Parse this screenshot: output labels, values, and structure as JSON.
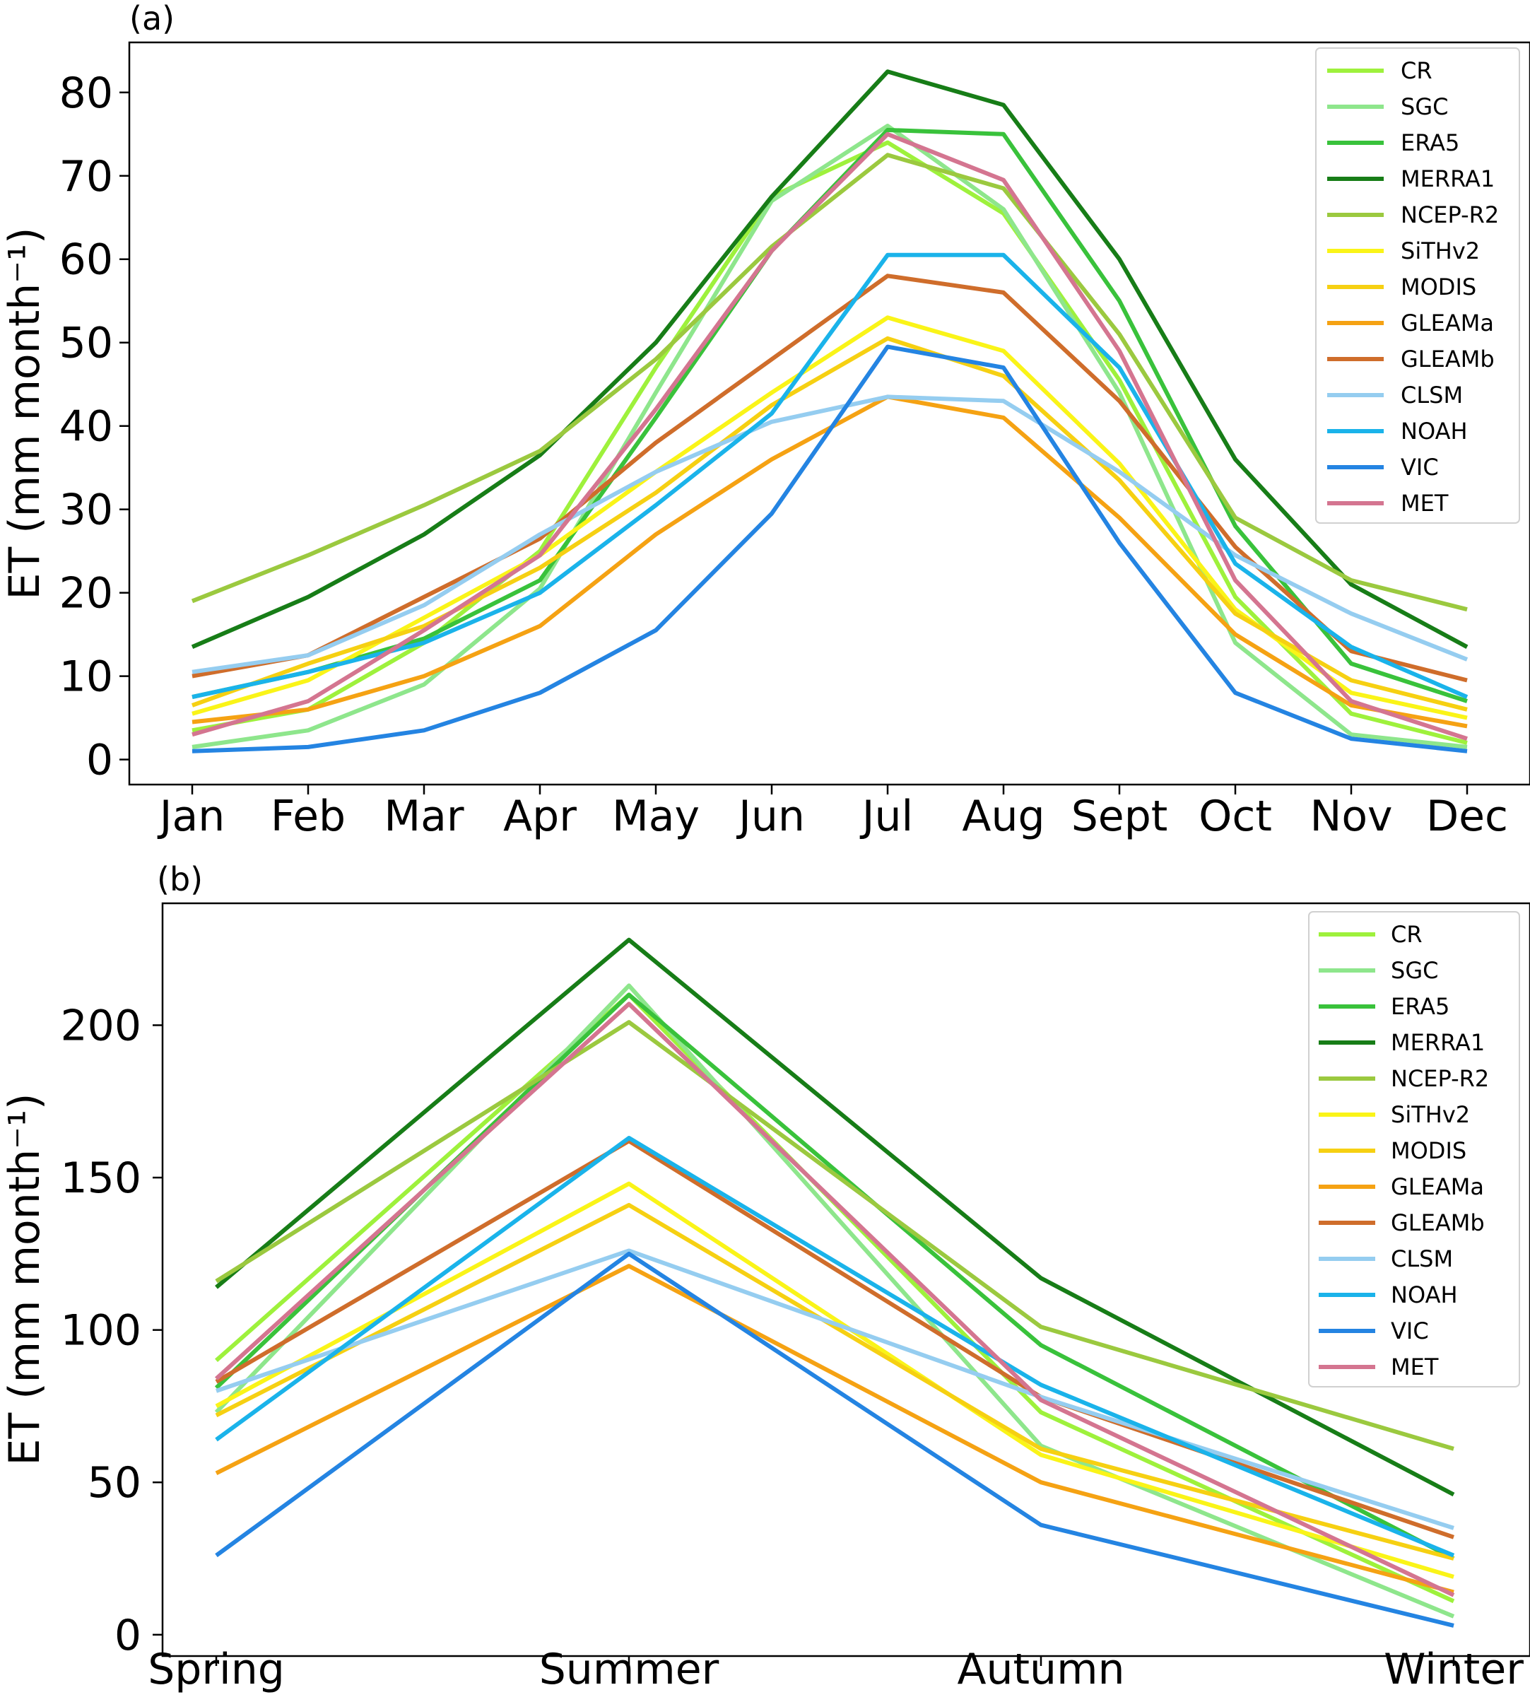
{
  "chart_data": [
    {
      "type": "line",
      "panel_label": "(a)",
      "ylabel": "ET (mm month⁻¹)",
      "categories": [
        "Jan",
        "Feb",
        "Mar",
        "Apr",
        "May",
        "Jun",
        "Jul",
        "Aug",
        "Sept",
        "Oct",
        "Nov",
        "Dec"
      ],
      "ylim": [
        -3,
        86
      ],
      "yticks": [
        0,
        10,
        20,
        30,
        40,
        50,
        60,
        70,
        80
      ],
      "legend_position": "top-right",
      "grid": false,
      "series": [
        {
          "name": "CR",
          "color": "#9ef13c",
          "values": [
            3.5,
            6.0,
            14.0,
            25.0,
            47.0,
            67.5,
            74.0,
            65.5,
            45.5,
            19.5,
            5.5,
            2.0
          ]
        },
        {
          "name": "SGC",
          "color": "#8ee68c",
          "values": [
            1.5,
            3.5,
            9.0,
            20.5,
            44.0,
            67.0,
            76.0,
            66.0,
            44.0,
            14.0,
            3.0,
            1.5
          ]
        },
        {
          "name": "ERA5",
          "color": "#39c23b",
          "values": [
            7.5,
            10.5,
            14.5,
            21.5,
            41.0,
            61.0,
            75.5,
            75.0,
            55.0,
            28.0,
            11.5,
            7.0
          ]
        },
        {
          "name": "MERRA1",
          "color": "#177d17",
          "values": [
            13.5,
            19.5,
            27.0,
            36.5,
            50.0,
            67.5,
            82.5,
            78.5,
            60.0,
            36.0,
            21.0,
            13.5
          ]
        },
        {
          "name": "NCEP-R2",
          "color": "#9bc93f",
          "values": [
            19.0,
            24.5,
            30.5,
            37.0,
            48.0,
            61.5,
            72.5,
            68.5,
            51.0,
            29.0,
            21.5,
            18.0
          ]
        },
        {
          "name": "SiTHv2",
          "color": "#faf418",
          "values": [
            5.5,
            9.5,
            17.0,
            24.5,
            34.5,
            44.0,
            53.0,
            49.0,
            35.5,
            18.0,
            8.0,
            5.0
          ]
        },
        {
          "name": "MODIS",
          "color": "#f6d012",
          "values": [
            6.5,
            11.5,
            16.0,
            23.0,
            32.0,
            42.5,
            50.5,
            46.0,
            33.5,
            17.5,
            9.5,
            6.0
          ]
        },
        {
          "name": "GLEAMa",
          "color": "#f5a213",
          "values": [
            4.5,
            6.0,
            10.0,
            16.0,
            27.0,
            36.0,
            43.5,
            41.0,
            29.0,
            15.0,
            6.5,
            4.0
          ]
        },
        {
          "name": "GLEAMb",
          "color": "#cf6d2b",
          "values": [
            10.0,
            12.5,
            19.5,
            26.5,
            38.0,
            48.0,
            58.0,
            56.0,
            43.0,
            25.5,
            13.0,
            9.5
          ]
        },
        {
          "name": "CLSM",
          "color": "#95cdf0",
          "values": [
            10.5,
            12.5,
            18.5,
            27.0,
            34.5,
            40.5,
            43.5,
            43.0,
            34.5,
            24.5,
            17.5,
            12.0
          ]
        },
        {
          "name": "NOAH",
          "color": "#1ab3ea",
          "values": [
            7.5,
            10.5,
            14.0,
            20.0,
            30.5,
            41.5,
            60.5,
            60.5,
            47.0,
            23.5,
            13.5,
            7.5
          ]
        },
        {
          "name": "VIC",
          "color": "#2484e2",
          "values": [
            1.0,
            1.5,
            3.5,
            8.0,
            15.5,
            29.5,
            49.5,
            47.0,
            26.0,
            8.0,
            2.5,
            1.0
          ]
        },
        {
          "name": "MET",
          "color": "#d47590",
          "values": [
            3.0,
            7.0,
            15.5,
            24.5,
            42.0,
            61.0,
            75.0,
            69.5,
            49.0,
            21.5,
            7.0,
            2.5
          ]
        }
      ]
    },
    {
      "type": "line",
      "panel_label": "(b)",
      "ylabel": "ET (mm month⁻¹)",
      "categories": [
        "Spring",
        "Summer",
        "Autumn",
        "Winter"
      ],
      "ylim": [
        -7,
        240
      ],
      "yticks": [
        0,
        50,
        100,
        150,
        200
      ],
      "legend_position": "top-right",
      "grid": false,
      "series": [
        {
          "name": "CR",
          "color": "#9ef13c",
          "values": [
            90,
            210,
            73,
            11
          ]
        },
        {
          "name": "SGC",
          "color": "#8ee68c",
          "values": [
            73,
            213,
            62,
            6
          ]
        },
        {
          "name": "ERA5",
          "color": "#39c23b",
          "values": [
            81,
            210,
            95,
            25
          ]
        },
        {
          "name": "MERRA1",
          "color": "#177d17",
          "values": [
            114,
            228,
            117,
            46
          ]
        },
        {
          "name": "NCEP-R2",
          "color": "#9bc93f",
          "values": [
            116,
            201,
            101,
            61
          ]
        },
        {
          "name": "SiTHv2",
          "color": "#faf418",
          "values": [
            75,
            148,
            59,
            19
          ]
        },
        {
          "name": "MODIS",
          "color": "#f6d012",
          "values": [
            72,
            141,
            61,
            25
          ]
        },
        {
          "name": "GLEAMa",
          "color": "#f5a213",
          "values": [
            53,
            121,
            50,
            14
          ]
        },
        {
          "name": "GLEAMb",
          "color": "#cf6d2b",
          "values": [
            83,
            162,
            78,
            32
          ]
        },
        {
          "name": "CLSM",
          "color": "#95cdf0",
          "values": [
            80,
            126,
            78,
            35
          ]
        },
        {
          "name": "NOAH",
          "color": "#1ab3ea",
          "values": [
            64,
            163,
            82,
            26
          ]
        },
        {
          "name": "VIC",
          "color": "#2484e2",
          "values": [
            26,
            125,
            36,
            3
          ]
        },
        {
          "name": "MET",
          "color": "#d47590",
          "values": [
            84,
            207,
            77,
            13
          ]
        }
      ]
    }
  ]
}
